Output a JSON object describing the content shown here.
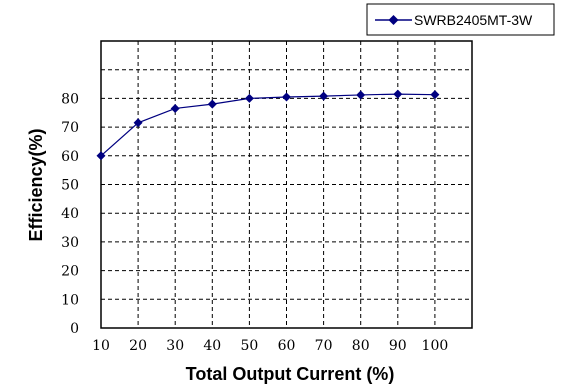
{
  "chart_data": {
    "type": "line",
    "xlabel": "Total Output Current (%)",
    "ylabel": "Efficiency(%)",
    "x": [
      10,
      20,
      30,
      40,
      50,
      60,
      70,
      80,
      90,
      100
    ],
    "x_ticks": [
      "10",
      "20",
      "30",
      "40",
      "50",
      "60",
      "70",
      "80",
      "90",
      "100"
    ],
    "y_ticks": [
      "0",
      "10",
      "20",
      "30",
      "40",
      "50",
      "60",
      "70",
      "80"
    ],
    "xlim": [
      10,
      110
    ],
    "ylim": [
      0,
      100
    ],
    "grid": true,
    "legend_position": "top-right",
    "series": [
      {
        "name": "SWRB2405MT-3W",
        "color": "#000080",
        "marker": "diamond",
        "values": [
          60,
          71.5,
          76.5,
          78,
          80,
          80.5,
          80.8,
          81.2,
          81.5,
          81.3
        ]
      }
    ]
  }
}
